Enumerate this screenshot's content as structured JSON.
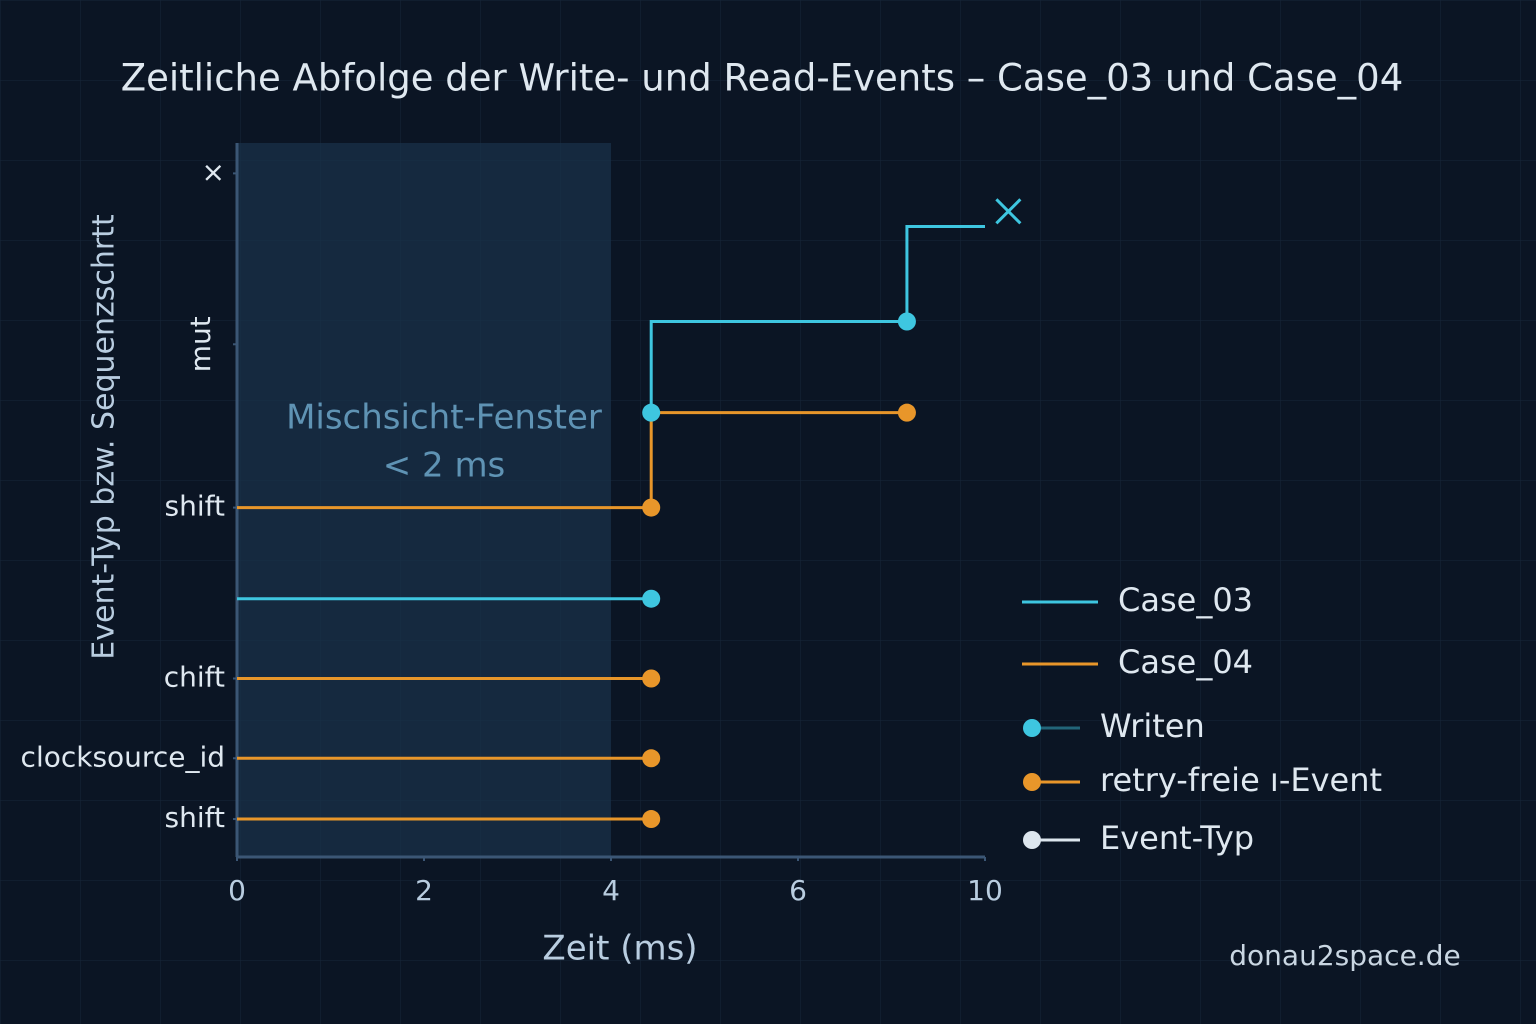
{
  "chart_data": {
    "type": "line",
    "title": "Zeitliche Abfolge der Write- und Read-Events – Case_03 und Case_04",
    "x_label": "Zeit (ms)",
    "y_label": "Event-Typ bzw. Sequenzschrtt",
    "annotation": [
      "Mischsicht-Fenster",
      "< 2 ms"
    ],
    "window": [
      0,
      4
    ],
    "watermark": "donau2space.de",
    "xlim": [
      0,
      10
    ],
    "xticks": [
      0,
      2,
      4,
      6,
      10
    ],
    "ylim": [
      0,
      18.8
    ],
    "yticks": [
      {
        "value": 1,
        "label": "shift"
      },
      {
        "value": 2.6,
        "label": "clocksource_id"
      },
      {
        "value": 4.7,
        "label": "chift"
      },
      {
        "value": 9.2,
        "label": "shift"
      },
      {
        "value": 13.5,
        "label": "mut"
      },
      {
        "value": 18,
        "label": "×"
      }
    ],
    "series": [
      {
        "name": "Case_03",
        "color": "#3ec6e0",
        "style": "line",
        "x": [
          0,
          4.43,
          null,
          4.43,
          4.43,
          8.33,
          8.33,
          10
        ],
        "values": [
          6.8,
          6.8,
          null,
          11.7,
          14.1,
          14.1,
          16.6,
          16.6
        ]
      },
      {
        "name": "Case_04",
        "color": "#e8962a",
        "style": "line",
        "x": [
          0,
          4.43,
          null,
          0,
          4.43,
          null,
          0,
          4.43,
          null,
          0,
          4.43,
          4.43,
          8.33
        ],
        "values": [
          1,
          1,
          null,
          2.6,
          2.6,
          null,
          4.7,
          4.7,
          null,
          9.2,
          9.2,
          11.7,
          11.7
        ]
      },
      {
        "name": "Writen",
        "color": "#3ec6e0",
        "style": "marker",
        "x": [
          4.43,
          4.43,
          8.33
        ],
        "values": [
          6.8,
          11.7,
          14.1
        ]
      },
      {
        "name": "retry-freie ı-Event",
        "color": "#e8962a",
        "style": "marker",
        "x": [
          4.43,
          4.43,
          4.43,
          4.43,
          8.33
        ],
        "values": [
          1,
          2.6,
          4.7,
          9.2,
          11.7
        ]
      },
      {
        "name": "Event-Typ",
        "color": "#dde6ee",
        "style": "marker",
        "x": [],
        "values": []
      }
    ],
    "end_marker": {
      "x": 10.5,
      "y": 17.0,
      "color": "#3ec6e0"
    }
  }
}
